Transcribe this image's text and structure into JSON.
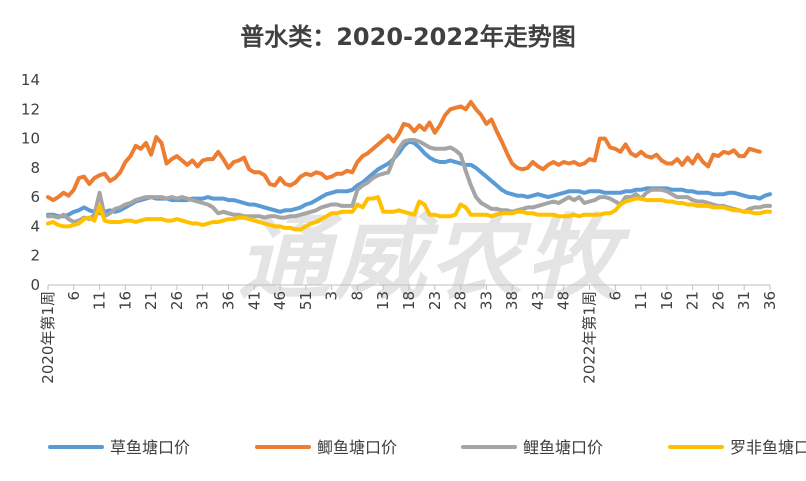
{
  "chart_data": {
    "type": "line",
    "title": "普水类：2020-2022年走势图",
    "watermark": "通威农牧",
    "xlabel": "",
    "ylabel": "",
    "ylim": [
      0,
      14
    ],
    "yticks": [
      0,
      2,
      4,
      6,
      8,
      10,
      12,
      14
    ],
    "grid": false,
    "legend": "bottom",
    "x_ticks": [
      {
        "label": "2020年第1周",
        "week": 1
      },
      {
        "label": "6",
        "week": 6
      },
      {
        "label": "11",
        "week": 11
      },
      {
        "label": "16",
        "week": 16
      },
      {
        "label": "21",
        "week": 21
      },
      {
        "label": "26",
        "week": 26
      },
      {
        "label": "31",
        "week": 31
      },
      {
        "label": "36",
        "week": 36
      },
      {
        "label": "41",
        "week": 41
      },
      {
        "label": "46",
        "week": 46
      },
      {
        "label": "51",
        "week": 51
      },
      {
        "label": "3",
        "week": 56
      },
      {
        "label": "8",
        "week": 61
      },
      {
        "label": "13",
        "week": 66
      },
      {
        "label": "18",
        "week": 71
      },
      {
        "label": "23",
        "week": 76
      },
      {
        "label": "28",
        "week": 81
      },
      {
        "label": "33",
        "week": 86
      },
      {
        "label": "38",
        "week": 91
      },
      {
        "label": "43",
        "week": 96
      },
      {
        "label": "48",
        "week": 101
      },
      {
        "label": "2022年第1周",
        "week": 106
      },
      {
        "label": "6",
        "week": 111
      },
      {
        "label": "11",
        "week": 116
      },
      {
        "label": "16",
        "week": 121
      },
      {
        "label": "21",
        "week": 126
      },
      {
        "label": "26",
        "week": 131
      },
      {
        "label": "31",
        "week": 136
      },
      {
        "label": "36",
        "week": 141
      }
    ],
    "series": [
      {
        "name": "草鱼塘口价",
        "color": "#5b9bd5",
        "values": [
          4.8,
          4.8,
          4.7,
          4.7,
          4.8,
          5.0,
          5.1,
          5.3,
          5.1,
          5.0,
          4.9,
          5.0,
          5.1,
          5.0,
          5.1,
          5.3,
          5.5,
          5.7,
          5.8,
          5.9,
          6.0,
          5.9,
          5.9,
          5.9,
          5.8,
          5.8,
          5.8,
          5.8,
          5.9,
          5.9,
          5.9,
          6.0,
          5.9,
          5.9,
          5.9,
          5.8,
          5.8,
          5.7,
          5.6,
          5.5,
          5.5,
          5.4,
          5.3,
          5.2,
          5.1,
          5.0,
          5.1,
          5.1,
          5.2,
          5.3,
          5.5,
          5.6,
          5.8,
          6.0,
          6.2,
          6.3,
          6.4,
          6.4,
          6.4,
          6.5,
          6.8,
          7.0,
          7.3,
          7.6,
          7.9,
          8.1,
          8.3,
          8.6,
          9.0,
          9.5,
          9.8,
          9.7,
          9.4,
          9.0,
          8.7,
          8.5,
          8.4,
          8.4,
          8.5,
          8.4,
          8.3,
          8.2,
          8.2,
          8.0,
          7.7,
          7.4,
          7.1,
          6.8,
          6.5,
          6.3,
          6.2,
          6.1,
          6.1,
          6.0,
          6.1,
          6.2,
          6.1,
          6.0,
          6.1,
          6.2,
          6.3,
          6.4,
          6.4,
          6.4,
          6.3,
          6.4,
          6.4,
          6.4,
          6.3,
          6.3,
          6.3,
          6.3,
          6.4,
          6.4,
          6.5,
          6.5,
          6.6,
          6.6,
          6.6,
          6.6,
          6.6,
          6.5,
          6.5,
          6.5,
          6.4,
          6.4,
          6.3,
          6.3,
          6.3,
          6.2,
          6.2,
          6.2,
          6.3,
          6.3,
          6.2,
          6.1,
          6.0,
          6.0,
          5.9,
          6.1,
          6.2
        ]
      },
      {
        "name": "鲫鱼塘口价",
        "color": "#ed7d31",
        "values": [
          6.0,
          5.8,
          6.0,
          6.3,
          6.1,
          6.5,
          7.3,
          7.4,
          6.9,
          7.3,
          7.5,
          7.6,
          7.1,
          7.3,
          7.7,
          8.4,
          8.8,
          9.5,
          9.3,
          9.7,
          8.9,
          10.1,
          9.7,
          8.3,
          8.6,
          8.8,
          8.5,
          8.2,
          8.5,
          8.1,
          8.5,
          8.6,
          8.6,
          9.1,
          8.6,
          8.0,
          8.4,
          8.5,
          8.7,
          7.9,
          7.7,
          7.7,
          7.5,
          6.9,
          6.8,
          7.3,
          6.9,
          6.8,
          7.0,
          7.4,
          7.6,
          7.5,
          7.7,
          7.6,
          7.3,
          7.4,
          7.6,
          7.6,
          7.8,
          7.7,
          8.4,
          8.8,
          9.0,
          9.3,
          9.6,
          9.9,
          10.2,
          9.8,
          10.3,
          11.0,
          10.9,
          10.5,
          10.9,
          10.6,
          11.1,
          10.4,
          10.9,
          11.6,
          12.0,
          12.1,
          12.2,
          12.0,
          12.5,
          12.0,
          11.6,
          11.0,
          11.3,
          10.5,
          9.8,
          9.0,
          8.3,
          8.0,
          7.9,
          8.0,
          8.4,
          8.1,
          7.9,
          8.2,
          8.4,
          8.2,
          8.4,
          8.3,
          8.4,
          8.2,
          8.3,
          8.6,
          8.5,
          10.0,
          10.0,
          9.4,
          9.3,
          9.1,
          9.6,
          9.0,
          8.8,
          9.1,
          8.8,
          8.7,
          8.9,
          8.5,
          8.3,
          8.3,
          8.6,
          8.2,
          8.7,
          8.3,
          8.9,
          8.4,
          8.1,
          8.9,
          8.8,
          9.1,
          9.0,
          9.2,
          8.8,
          8.8,
          9.3,
          9.2,
          9.1
        ]
      },
      {
        "name": "鲤鱼塘口价",
        "color": "#a5a5a5",
        "values": [
          4.7,
          4.7,
          4.6,
          4.8,
          4.5,
          4.3,
          4.4,
          4.6,
          4.5,
          4.8,
          6.3,
          4.7,
          4.9,
          5.2,
          5.3,
          5.5,
          5.6,
          5.8,
          5.9,
          6.0,
          6.0,
          6.0,
          6.0,
          5.9,
          6.0,
          5.9,
          6.0,
          5.9,
          5.8,
          5.7,
          5.6,
          5.5,
          5.3,
          4.9,
          5.0,
          4.9,
          4.8,
          4.8,
          4.7,
          4.7,
          4.7,
          4.7,
          4.6,
          4.7,
          4.7,
          4.6,
          4.6,
          4.7,
          4.7,
          4.8,
          4.9,
          5.0,
          5.1,
          5.3,
          5.4,
          5.5,
          5.5,
          5.4,
          5.4,
          5.4,
          6.5,
          6.8,
          7.0,
          7.3,
          7.5,
          7.6,
          7.7,
          8.6,
          9.3,
          9.8,
          9.9,
          9.9,
          9.8,
          9.6,
          9.4,
          9.3,
          9.3,
          9.3,
          9.4,
          9.2,
          8.9,
          7.8,
          6.8,
          6.0,
          5.6,
          5.4,
          5.2,
          5.2,
          5.1,
          5.1,
          5.0,
          5.1,
          5.2,
          5.3,
          5.3,
          5.4,
          5.5,
          5.6,
          5.7,
          5.6,
          5.8,
          6.0,
          5.8,
          6.0,
          5.6,
          5.7,
          5.8,
          6.0,
          6.0,
          5.9,
          5.7,
          5.5,
          6.0,
          6.0,
          6.2,
          5.9,
          6.3,
          6.5,
          6.5,
          6.5,
          6.4,
          6.2,
          6.0,
          6.0,
          6.0,
          5.8,
          5.7,
          5.7,
          5.6,
          5.5,
          5.4,
          5.4,
          5.3,
          5.2,
          5.1,
          5.0,
          5.2,
          5.3,
          5.3,
          5.4,
          5.4
        ]
      },
      {
        "name": "罗非鱼塘口价",
        "color": "#ffc000",
        "values": [
          4.2,
          4.3,
          4.1,
          4.0,
          4.0,
          4.1,
          4.2,
          4.5,
          4.6,
          4.4,
          5.4,
          4.4,
          4.3,
          4.3,
          4.3,
          4.4,
          4.4,
          4.3,
          4.4,
          4.5,
          4.5,
          4.5,
          4.5,
          4.4,
          4.4,
          4.5,
          4.4,
          4.3,
          4.2,
          4.2,
          4.1,
          4.2,
          4.3,
          4.3,
          4.4,
          4.5,
          4.5,
          4.6,
          4.6,
          4.5,
          4.4,
          4.3,
          4.2,
          4.1,
          4.0,
          4.0,
          3.9,
          3.9,
          3.8,
          3.8,
          4.0,
          4.2,
          4.3,
          4.5,
          4.7,
          4.9,
          4.9,
          5.0,
          5.0,
          5.0,
          5.5,
          5.3,
          5.9,
          5.9,
          6.0,
          5.0,
          5.0,
          5.0,
          5.1,
          5.0,
          4.9,
          4.8,
          5.7,
          5.5,
          4.8,
          4.8,
          4.7,
          4.7,
          4.7,
          4.8,
          5.5,
          5.3,
          4.8,
          4.8,
          4.8,
          4.8,
          4.7,
          4.8,
          4.9,
          4.9,
          4.9,
          5.0,
          5.0,
          4.9,
          4.9,
          4.8,
          4.8,
          4.8,
          4.8,
          4.7,
          4.7,
          4.7,
          4.8,
          4.7,
          4.8,
          4.8,
          4.8,
          4.8,
          4.9,
          4.9,
          5.1,
          5.5,
          5.7,
          5.8,
          5.9,
          5.9,
          5.8,
          5.8,
          5.8,
          5.8,
          5.7,
          5.7,
          5.6,
          5.6,
          5.5,
          5.5,
          5.4,
          5.4,
          5.4,
          5.3,
          5.3,
          5.3,
          5.2,
          5.1,
          5.1,
          5.0,
          5.0,
          4.9,
          4.9,
          5.0,
          5.0
        ]
      }
    ]
  }
}
